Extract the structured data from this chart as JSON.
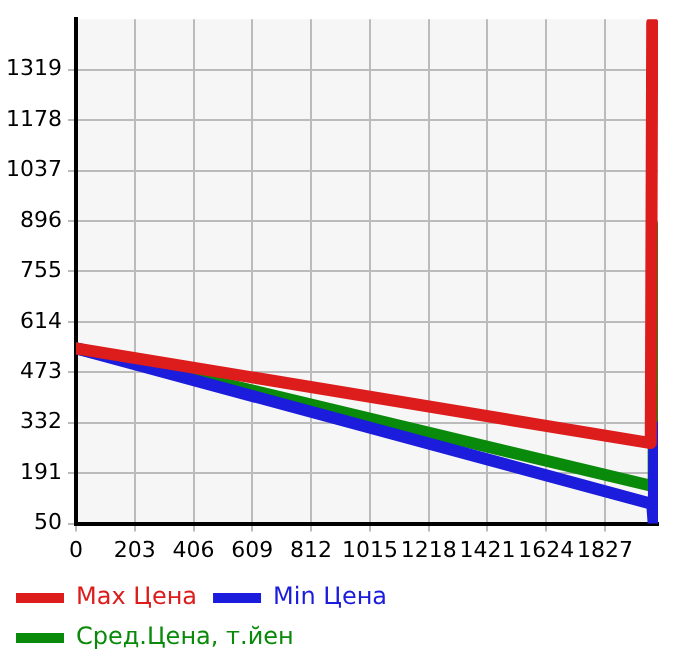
{
  "chart_data": {
    "type": "line",
    "x": [
      0,
      1985,
      1990
    ],
    "series": [
      {
        "name": "Max Цена",
        "color": "#dd1c1c",
        "values": [
          540,
          275,
          1450
        ]
      },
      {
        "name": "Min Цена",
        "color": "#1c1cdd",
        "x": [
          0,
          1990,
          1995,
          1998
        ],
        "values": [
          540,
          105,
          50,
          320
        ]
      },
      {
        "name": "Сред.Цена, т.йен",
        "color": "#0a8a0a",
        "x": [
          0,
          1990,
          1995
        ],
        "values": [
          540,
          155,
          880
        ]
      }
    ],
    "xlim": [
      0,
      2010
    ],
    "xticks": [
      0,
      203,
      406,
      609,
      812,
      1015,
      1218,
      1421,
      1624,
      1827
    ],
    "ylim": [
      50,
      1460
    ],
    "yticks": [
      50,
      191,
      332,
      473,
      614,
      755,
      896,
      1037,
      1178,
      1319
    ],
    "grid": true,
    "legend": "bottom",
    "marker": "none",
    "line_style": "solid"
  }
}
